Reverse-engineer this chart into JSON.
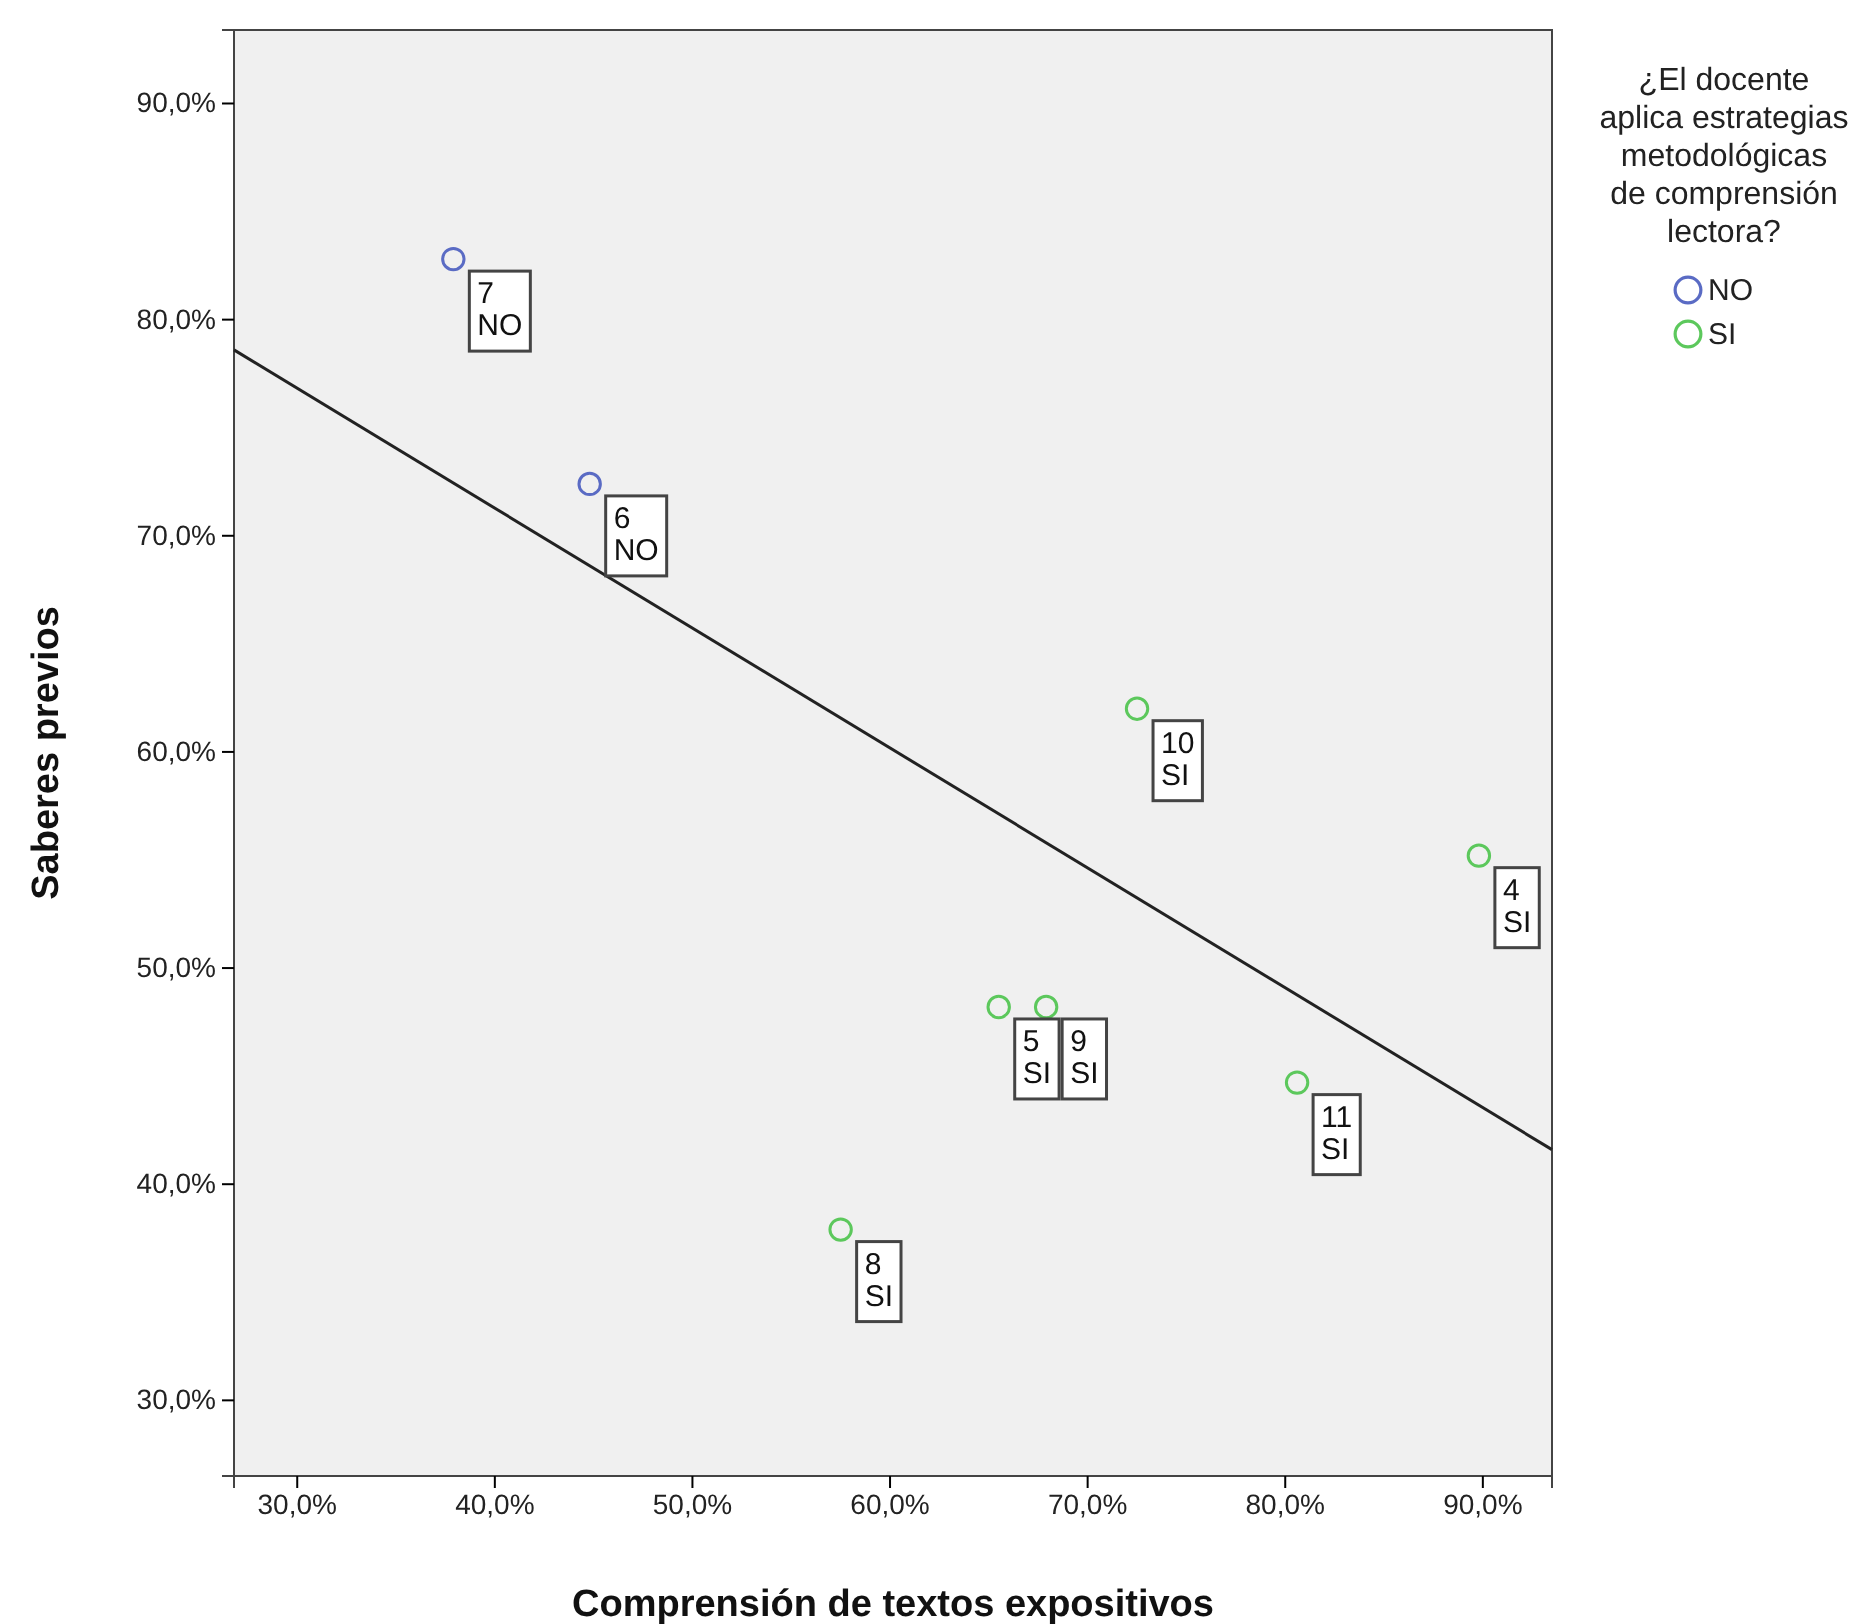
{
  "chart_data": {
    "type": "scatter",
    "xlabel": "Comprensión de textos expositivos",
    "ylabel": "Saberes previos",
    "legend_title": "¿El docente aplica estrategias metodológicas de comprensión lectora?",
    "legend": "top right",
    "marker": "circle",
    "grid": false,
    "xlim": [
      26.8,
      93.5
    ],
    "ylim": [
      26.5,
      93.4
    ],
    "xticks": [
      {
        "value": 30,
        "label": "30,0%"
      },
      {
        "value": 40,
        "label": "40,0%"
      },
      {
        "value": 50,
        "label": "50,0%"
      },
      {
        "value": 60,
        "label": "60,0%"
      },
      {
        "value": 70,
        "label": "70,0%"
      },
      {
        "value": 80,
        "label": "80,0%"
      },
      {
        "value": 90,
        "label": "90,0%"
      }
    ],
    "yticks": [
      {
        "value": 30,
        "label": "30,0%"
      },
      {
        "value": 40,
        "label": "40,0%"
      },
      {
        "value": 50,
        "label": "50,0%"
      },
      {
        "value": 60,
        "label": "60,0%"
      },
      {
        "value": 70,
        "label": "70,0%"
      },
      {
        "value": 80,
        "label": "80,0%"
      },
      {
        "value": 90,
        "label": "90,0%"
      }
    ],
    "series": [
      {
        "name": "NO",
        "color": "#5a6bc4",
        "x": [
          37.9,
          44.8
        ],
        "values": [
          82.8,
          72.4
        ]
      },
      {
        "name": "SI",
        "color": "#5cc85c",
        "x": [
          72.5,
          89.8,
          65.5,
          67.9,
          80.6,
          57.5
        ],
        "values": [
          62.0,
          55.2,
          48.2,
          48.2,
          44.7,
          37.9
        ]
      },
      {
        "type": "line",
        "color": "#222222",
        "marker": "none",
        "x": [
          26.8,
          93.5
        ],
        "values": [
          78.6,
          41.6
        ]
      }
    ],
    "annotations": [
      {
        "text": "7\nNO",
        "x": 37.9,
        "y": 82.8
      },
      {
        "text": "6\nNO",
        "x": 44.8,
        "y": 72.4
      },
      {
        "text": "10\nSI",
        "x": 72.5,
        "y": 62.0
      },
      {
        "text": "4\nSI",
        "x": 89.8,
        "y": 55.2
      },
      {
        "text": "9\nSI",
        "x": 67.9,
        "y": 48.2
      },
      {
        "text": "5\nSI",
        "x": 65.5,
        "y": 48.2
      },
      {
        "text": "11\nSI",
        "x": 80.6,
        "y": 44.7
      },
      {
        "text": "8\nSI",
        "x": 57.5,
        "y": 37.9
      }
    ]
  }
}
